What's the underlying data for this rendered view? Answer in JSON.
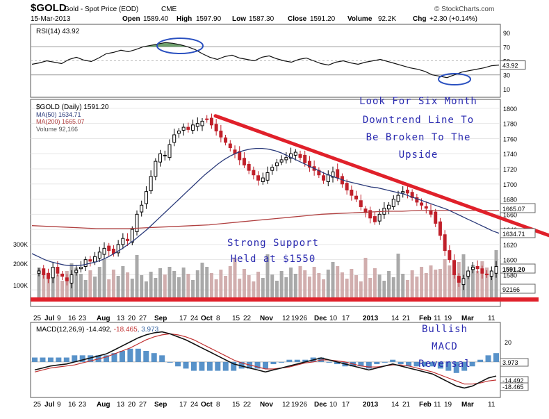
{
  "header": {
    "symbol": "$GOLD",
    "name": "Gold - Spot Price (EOD)",
    "exchange": "CME",
    "date": "15-Mar-2013",
    "open_label": "Open",
    "open": "1589.40",
    "high_label": "High",
    "high": "1597.90",
    "low_label": "Low",
    "low": "1587.30",
    "close_label": "Close",
    "close": "1591.20",
    "volume_label": "Volume",
    "volume": "92.2K",
    "chg_label": "Chg",
    "chg": "+2.30 (+0.14%)",
    "brand": "© StockCharts.com"
  },
  "colors": {
    "trendline": "#e0202a",
    "ma50": "#2a3a7a",
    "ma200": "#b04040",
    "annotation": "#2a2ab0",
    "up_candle": "#000000",
    "down_candle": "#c0202a",
    "volume_bar": "#aaaaaa",
    "macd_hist": "#3b7fc0",
    "circle": "#2a50c0"
  },
  "x_axis": {
    "labels_main": [
      "25",
      "Jul",
      "9",
      "16",
      "23",
      "Aug",
      "13",
      "20",
      "27",
      "Sep",
      "17",
      "24",
      "Oct",
      "8",
      "15",
      "22",
      "Nov",
      "12",
      "19",
      "26",
      "Dec",
      "10",
      "17",
      "2013",
      "14",
      "21",
      "Feb",
      "11",
      "19",
      "Mar",
      "11"
    ],
    "labels_bottom": [
      "25",
      "Jul",
      "9",
      "16",
      "23",
      "Aug",
      "13",
      "20",
      "27",
      "Sep",
      "17",
      "24",
      "Oct",
      "8",
      "15",
      "22",
      "Nov",
      "12",
      "19",
      "26",
      "Dec",
      "10",
      "17",
      "2013",
      "14",
      "21",
      "Feb",
      "11",
      "19",
      "Mar",
      "11"
    ]
  },
  "chart_data": [
    {
      "panel": "rsi",
      "type": "line",
      "legend": "RSI(14) 43.92",
      "ylim": [
        0,
        100
      ],
      "yticks": [
        90,
        70,
        50,
        30,
        10
      ],
      "reference_lines": [
        70,
        30
      ],
      "last_value_label": "43.92",
      "series": [
        {
          "values": [
            45,
            47,
            50,
            48,
            46,
            52,
            55,
            51,
            49,
            54,
            60,
            62,
            65,
            63,
            66,
            70,
            72,
            74,
            76,
            75,
            73,
            70,
            66,
            60,
            55,
            52,
            56,
            58,
            54,
            52,
            50,
            55,
            57,
            53,
            50,
            48,
            52,
            54,
            50,
            46,
            44,
            48,
            50,
            47,
            45,
            48,
            50,
            52,
            49,
            46,
            43,
            40,
            38,
            35,
            30,
            28,
            26,
            30,
            34,
            36,
            38,
            40,
            43,
            44
          ]
        }
      ]
    },
    {
      "panel": "price",
      "type": "line",
      "legend": [
        {
          "label": "$GOLD (Daily) 1591.20"
        },
        {
          "label": "MA(50) 1634.71"
        },
        {
          "label": "MA(200) 1665.07"
        },
        {
          "label": "Volume 92,166"
        }
      ],
      "ylim": [
        1540,
        1810
      ],
      "yticks": [
        1800,
        1780,
        1760,
        1740,
        1720,
        1700,
        1680,
        1660,
        1640,
        1620,
        1600,
        1580,
        1560
      ],
      "volume_ticks": [
        "300K",
        "200K",
        "100K"
      ],
      "value_tags": [
        {
          "label": "1665.07",
          "value": 1665.07
        },
        {
          "label": "1634.71",
          "value": 1634.71
        },
        {
          "label": "1591.20",
          "value": 1591.2
        },
        {
          "label": "92166",
          "value": 1552
        }
      ],
      "close": [
        1585,
        1580,
        1575,
        1590,
        1582,
        1578,
        1572,
        1580,
        1586,
        1590,
        1600,
        1598,
        1604,
        1610,
        1615,
        1612,
        1608,
        1620,
        1628,
        1625,
        1640,
        1660,
        1672,
        1690,
        1710,
        1730,
        1740,
        1738,
        1752,
        1765,
        1770,
        1775,
        1772,
        1778,
        1780,
        1783,
        1785,
        1778,
        1770,
        1762,
        1755,
        1748,
        1740,
        1732,
        1725,
        1718,
        1712,
        1705,
        1708,
        1715,
        1722,
        1728,
        1732,
        1735,
        1740,
        1742,
        1735,
        1728,
        1722,
        1718,
        1712,
        1705,
        1712,
        1716,
        1708,
        1700,
        1692,
        1685,
        1680,
        1670,
        1662,
        1655,
        1650,
        1660,
        1668,
        1672,
        1680,
        1685,
        1690,
        1688,
        1682,
        1676,
        1672,
        1668,
        1660,
        1648,
        1632,
        1612,
        1600,
        1580,
        1570,
        1575,
        1585,
        1590,
        1588,
        1582,
        1580,
        1585,
        1591
      ],
      "ma50": [
        1608,
        1604,
        1600,
        1597,
        1595,
        1593,
        1592,
        1592,
        1593,
        1595,
        1597,
        1600,
        1604,
        1609,
        1614,
        1620,
        1626,
        1633,
        1640,
        1648,
        1656,
        1664,
        1672,
        1680,
        1688,
        1696,
        1704,
        1712,
        1719,
        1726,
        1732,
        1737,
        1741,
        1744,
        1746,
        1747,
        1747,
        1746,
        1744,
        1741,
        1737,
        1733,
        1729,
        1725,
        1721,
        1717,
        1713,
        1710,
        1707,
        1704,
        1702,
        1700,
        1698,
        1696,
        1695,
        1693,
        1691,
        1689,
        1687,
        1684,
        1681,
        1678,
        1675,
        1672,
        1669,
        1666,
        1662,
        1658,
        1654,
        1650,
        1646,
        1642,
        1638,
        1635
      ],
      "ma200": [
        1645,
        1644,
        1643,
        1642,
        1641,
        1641,
        1641,
        1642,
        1643,
        1644,
        1645,
        1646,
        1648,
        1650,
        1652,
        1654,
        1656,
        1658,
        1660,
        1661,
        1662,
        1663,
        1664,
        1664,
        1665,
        1665,
        1665,
        1665,
        1665,
        1665
      ]
    },
    {
      "panel": "trendline",
      "type": "line",
      "label": "Look For Six Month Downtrend Line To Be Broken To The Upside",
      "series": [
        {
          "from": {
            "date": "Oct 4",
            "value": 1790
          },
          "to": {
            "date": "Mar 15",
            "value": 1640
          }
        }
      ]
    },
    {
      "panel": "macd",
      "type": "line",
      "legend": "MACD(12,26,9) -14.492, -18.465, 3.973",
      "legend_parts": [
        "MACD(12,26,9) -14.492, ",
        "-18.465",
        ", 3.973"
      ],
      "yticks": [
        20
      ],
      "value_tags": [
        "3.973",
        "-14.492",
        "-18.465"
      ],
      "macd": [
        -8,
        -6,
        -4,
        -3,
        -2,
        0,
        2,
        4,
        6,
        8,
        12,
        16,
        20,
        24,
        27,
        29,
        30,
        28,
        25,
        22,
        18,
        14,
        10,
        6,
        2,
        -2,
        -4,
        -6,
        -8,
        -10,
        -8,
        -6,
        -4,
        -2,
        0,
        2,
        4,
        2,
        0,
        -2,
        -4,
        -6,
        -8,
        -6,
        -4,
        -2,
        -4,
        -6,
        -8,
        -10,
        -12,
        -16,
        -20,
        -24,
        -26,
        -24,
        -20,
        -16,
        -14
      ],
      "signal": [
        -10,
        -8,
        -6,
        -5,
        -4,
        -3,
        -1,
        1,
        3,
        5,
        8,
        11,
        14,
        18,
        22,
        25,
        27,
        28,
        27,
        25,
        22,
        18,
        14,
        10,
        6,
        2,
        -1,
        -3,
        -5,
        -7,
        -7,
        -6,
        -5,
        -3,
        -1,
        0,
        2,
        2,
        1,
        0,
        -2,
        -4,
        -5,
        -5,
        -4,
        -3,
        -3,
        -4,
        -6,
        -8,
        -10,
        -13,
        -16,
        -19,
        -22,
        -22,
        -21,
        -19,
        -18
      ]
    }
  ],
  "annotations": {
    "trend_text": [
      "Look For Six Month",
      "Downtrend Line To",
      "Be Broken To The",
      "Upside"
    ],
    "support_text": [
      "Strong Support",
      "Held at $1550"
    ],
    "macd_text": [
      "Bullish",
      "MACD",
      "Reversal"
    ]
  }
}
